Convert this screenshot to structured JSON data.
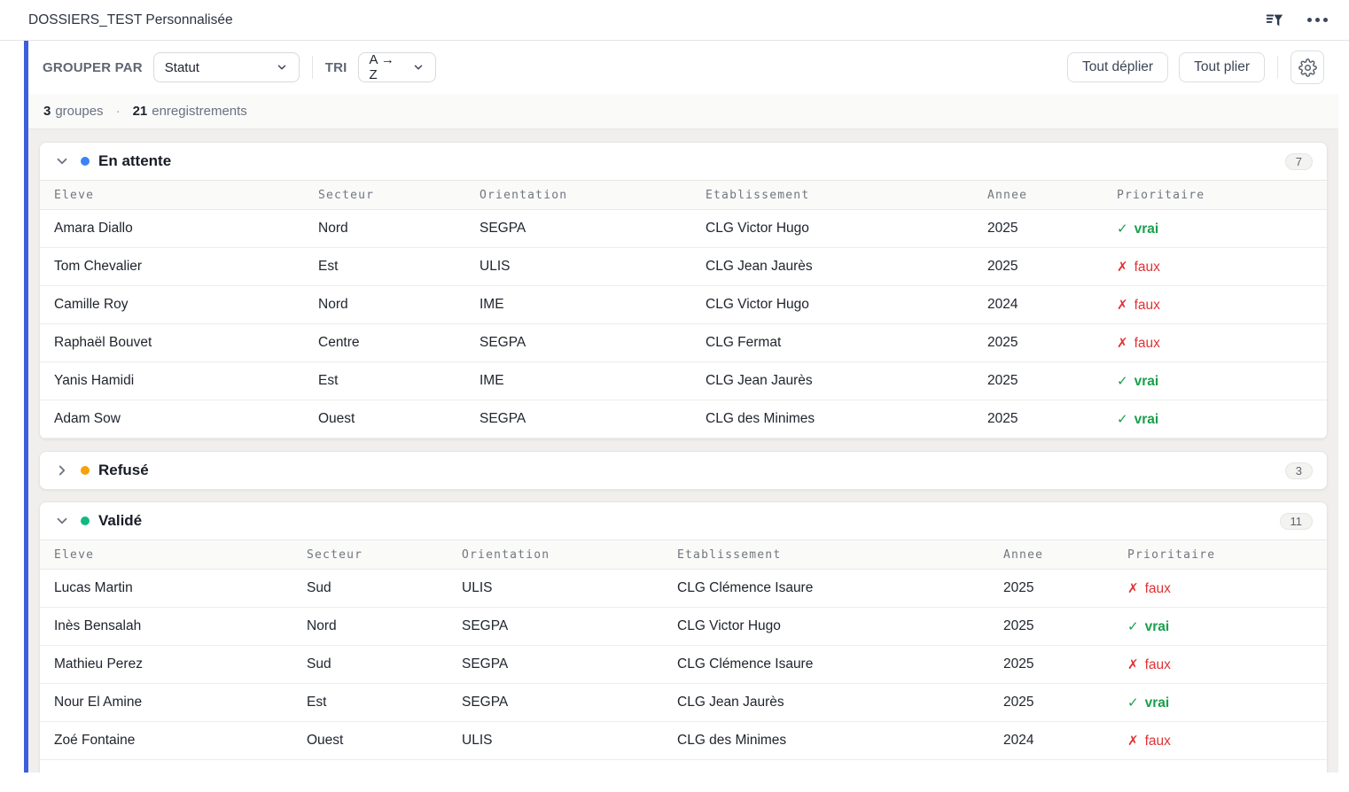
{
  "header": {
    "title": "DOSSIERS_TEST Personnalisée"
  },
  "toolbar": {
    "group_by_label": "GROUPER PAR",
    "group_by_value": "Statut",
    "sort_label": "TRI",
    "sort_value": "A → Z",
    "expand_all_label": "Tout déplier",
    "collapse_all_label": "Tout plier"
  },
  "summary": {
    "groups_count": "3",
    "groups_label": "groupes",
    "separator": "·",
    "records_count": "21",
    "records_label": "enregistrements"
  },
  "columns": [
    "Eleve",
    "Secteur",
    "Orientation",
    "Etablissement",
    "Annee",
    "Prioritaire"
  ],
  "boolean": {
    "true_icon": "✓",
    "true_label": "vrai",
    "true_color": "#18a04b",
    "false_icon": "✗",
    "false_label": "faux",
    "false_color": "#e03235"
  },
  "groups": [
    {
      "name": "En attente",
      "count": "7",
      "color": "#3b82f6",
      "collapsed": false,
      "rows": [
        {
          "eleve": "Amara Diallo",
          "secteur": "Nord",
          "orientation": "SEGPA",
          "etablissement": "CLG Victor Hugo",
          "annee": "2025",
          "prioritaire": true
        },
        {
          "eleve": "Tom Chevalier",
          "secteur": "Est",
          "orientation": "ULIS",
          "etablissement": "CLG Jean Jaurès",
          "annee": "2025",
          "prioritaire": false
        },
        {
          "eleve": "Camille Roy",
          "secteur": "Nord",
          "orientation": "IME",
          "etablissement": "CLG Victor Hugo",
          "annee": "2024",
          "prioritaire": false
        },
        {
          "eleve": "Raphaël Bouvet",
          "secteur": "Centre",
          "orientation": "SEGPA",
          "etablissement": "CLG Fermat",
          "annee": "2025",
          "prioritaire": false
        },
        {
          "eleve": "Yanis Hamidi",
          "secteur": "Est",
          "orientation": "IME",
          "etablissement": "CLG Jean Jaurès",
          "annee": "2025",
          "prioritaire": true
        },
        {
          "eleve": "Adam Sow",
          "secteur": "Ouest",
          "orientation": "SEGPA",
          "etablissement": "CLG des Minimes",
          "annee": "2025",
          "prioritaire": true
        }
      ]
    },
    {
      "name": "Refusé",
      "count": "3",
      "color": "#f5a00c",
      "collapsed": true,
      "rows": []
    },
    {
      "name": "Validé",
      "count": "11",
      "color": "#10b981",
      "collapsed": false,
      "rows": [
        {
          "eleve": "Lucas Martin",
          "secteur": "Sud",
          "orientation": "ULIS",
          "etablissement": "CLG Clémence Isaure",
          "annee": "2025",
          "prioritaire": false
        },
        {
          "eleve": "Inès Bensalah",
          "secteur": "Nord",
          "orientation": "SEGPA",
          "etablissement": "CLG Victor Hugo",
          "annee": "2025",
          "prioritaire": true
        },
        {
          "eleve": "Mathieu Perez",
          "secteur": "Sud",
          "orientation": "SEGPA",
          "etablissement": "CLG Clémence Isaure",
          "annee": "2025",
          "prioritaire": false
        },
        {
          "eleve": "Nour El Amine",
          "secteur": "Est",
          "orientation": "SEGPA",
          "etablissement": "CLG Jean Jaurès",
          "annee": "2025",
          "prioritaire": true
        },
        {
          "eleve": "Zoé Fontaine",
          "secteur": "Ouest",
          "orientation": "ULIS",
          "etablissement": "CLG des Minimes",
          "annee": "2024",
          "prioritaire": false
        }
      ]
    }
  ]
}
